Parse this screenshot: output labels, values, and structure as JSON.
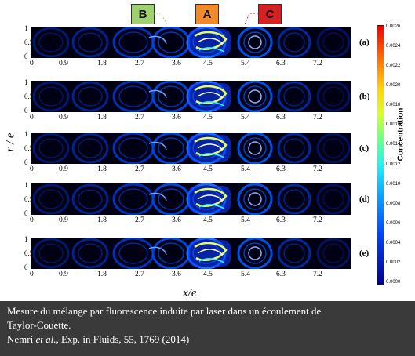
{
  "callouts": {
    "b": "B",
    "a": "A",
    "c": "C"
  },
  "panels": [
    {
      "label": "(a)"
    },
    {
      "label": "(b)"
    },
    {
      "label": "(c)"
    },
    {
      "label": "(d)"
    },
    {
      "label": "(e)"
    }
  ],
  "x_ticks": [
    "0",
    "0.9",
    "1.8",
    "2.7",
    "3.6",
    "4.5",
    "5.4",
    "6.3",
    "7.2"
  ],
  "y_ticks": [
    "1",
    "0.5",
    "0"
  ],
  "y_axis_title": "r / e",
  "x_axis_title": "x/e",
  "colorbar": {
    "title": "Concentration",
    "ticks": [
      "0.0026",
      "0.0024",
      "0.0022",
      "0.0020",
      "0.0018",
      "0.0016",
      "0.0014",
      "0.0012",
      "0.0010",
      "0.0008",
      "0.0006",
      "0.0004",
      "0.0002",
      "0.0000"
    ]
  },
  "caption": {
    "line1": "Mesure du mélange par fluorescence induite par laser dans un écoulement de",
    "line2": "Taylor-Couette.",
    "citation_authors": "Nemri",
    "citation_etal": "et al.",
    "citation_rest": ", Exp. in Fluids, 55, 1769 (2014)"
  }
}
